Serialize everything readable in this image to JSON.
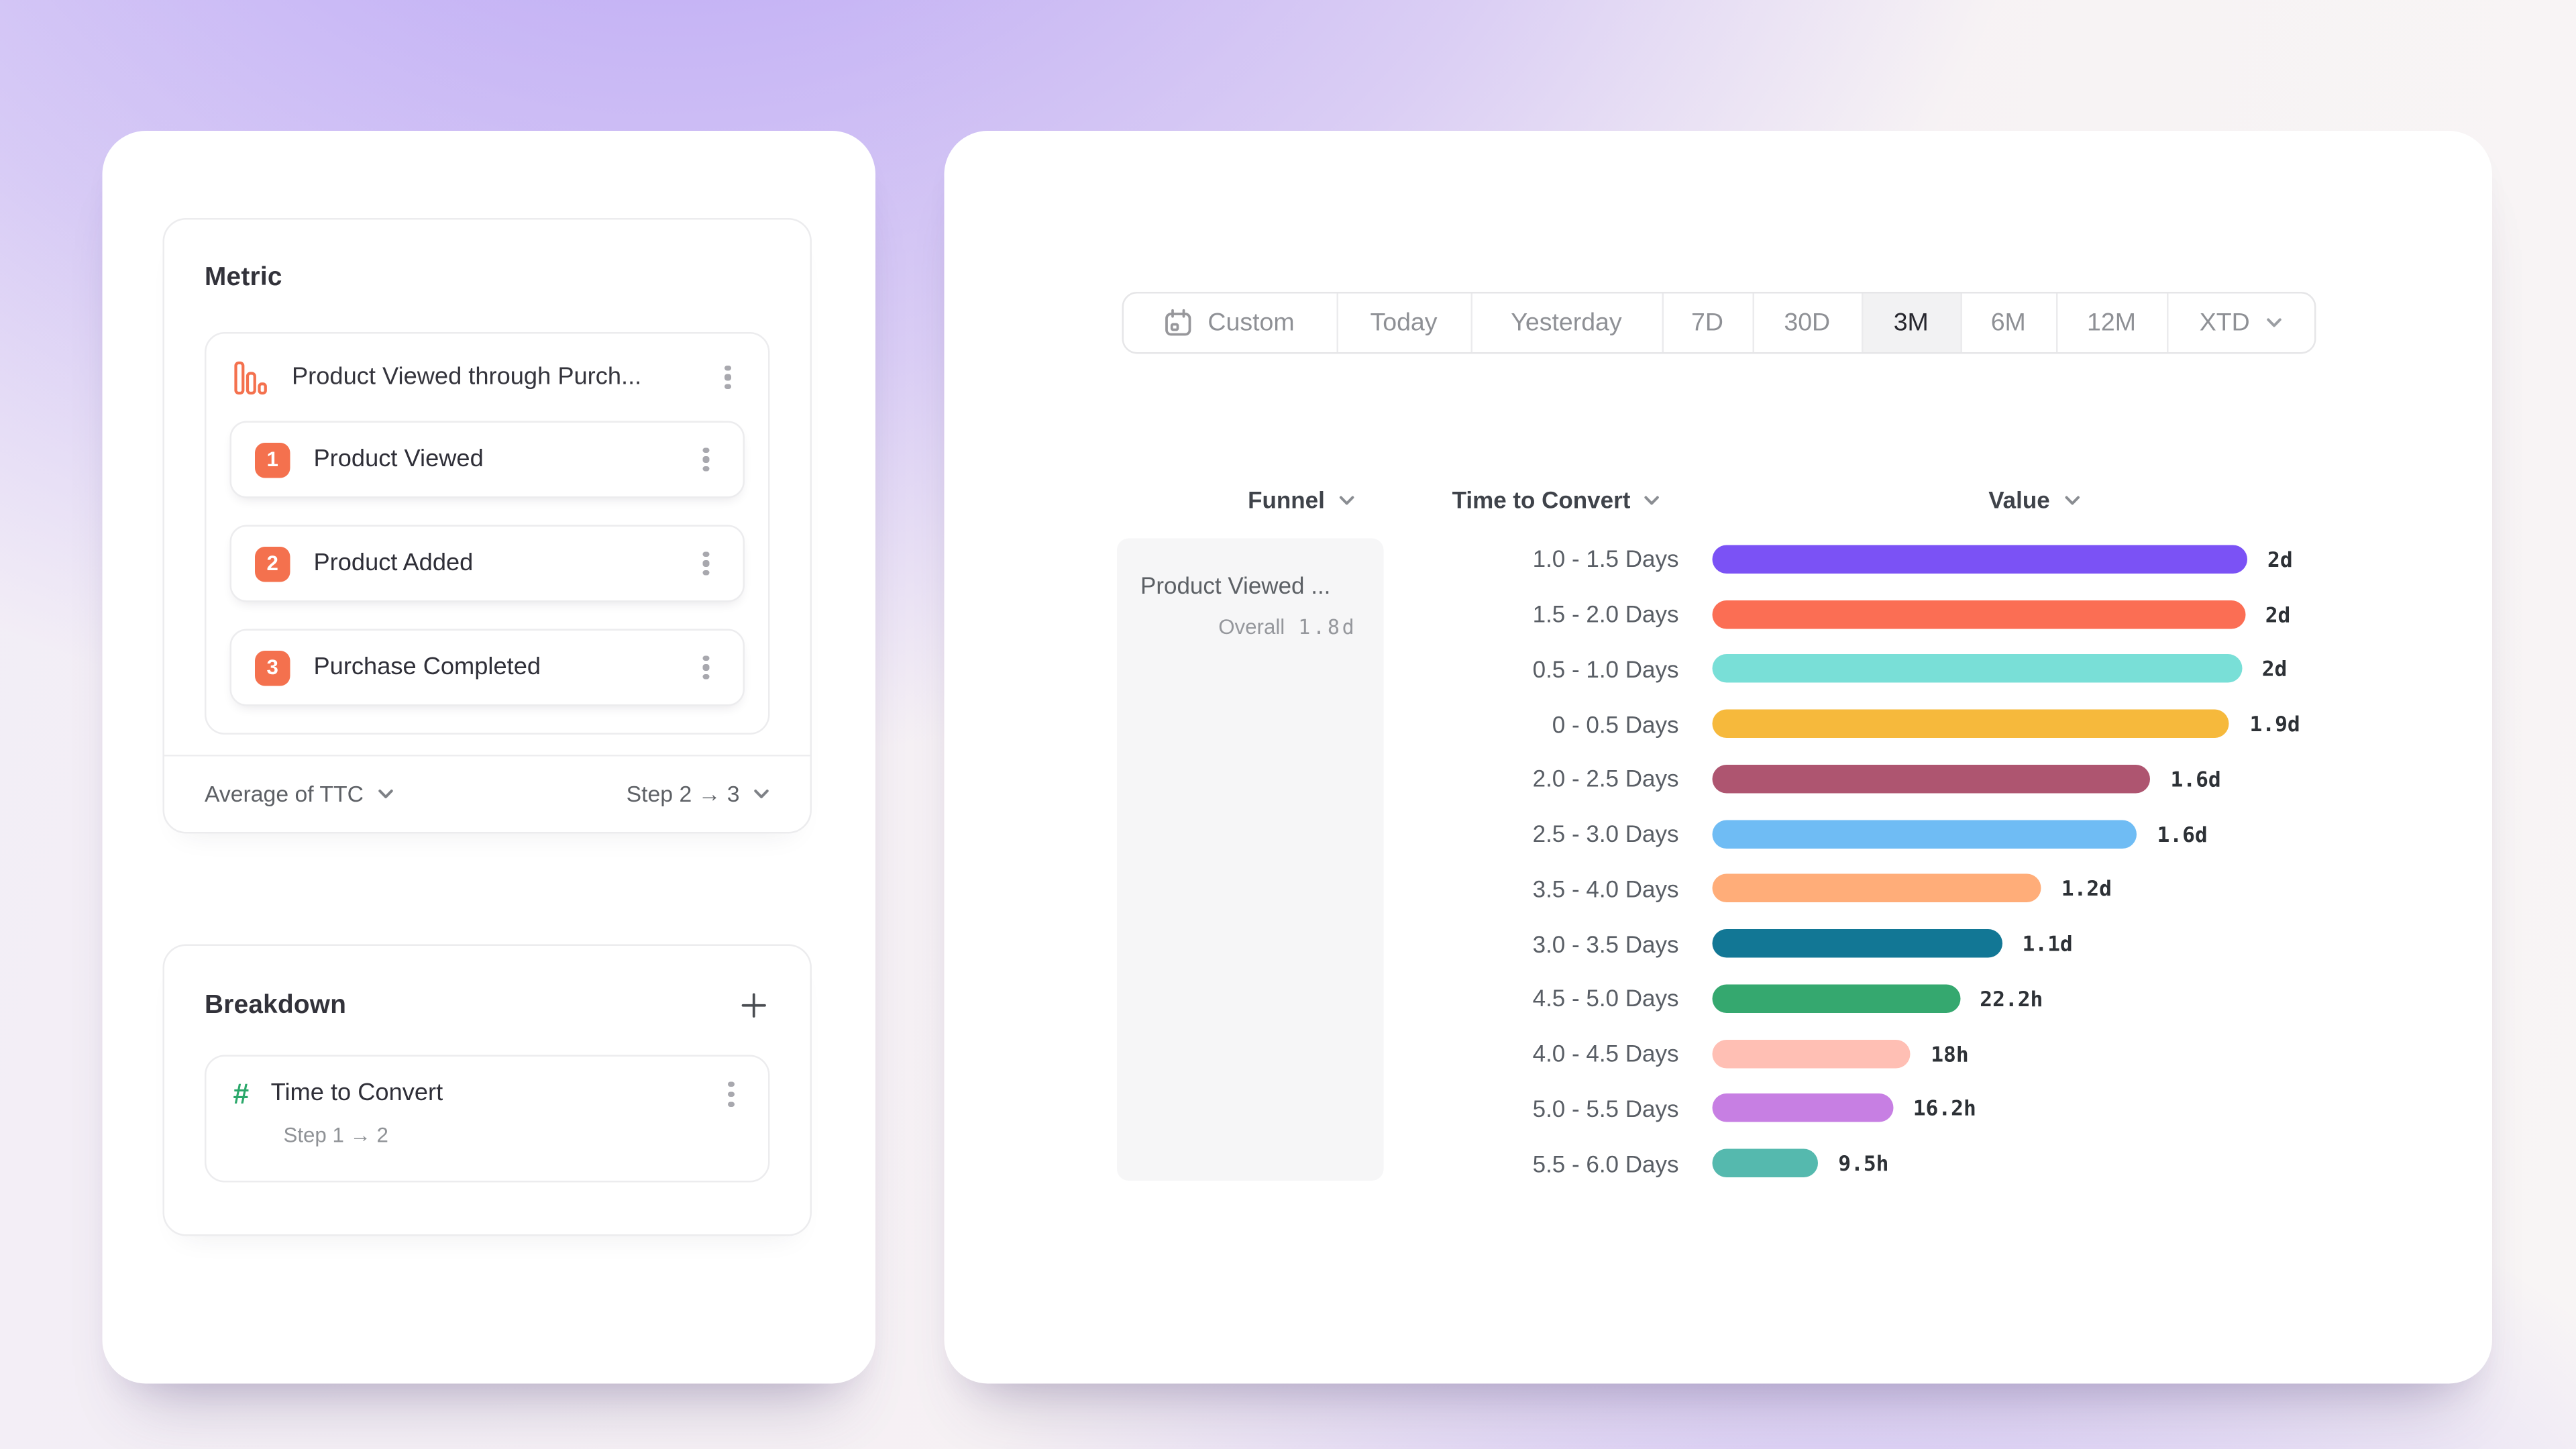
{
  "left_panel": {
    "metric": {
      "title": "Metric",
      "funnel_name": "Product Viewed through Purch...",
      "steps": [
        {
          "num": "1",
          "label": "Product Viewed"
        },
        {
          "num": "2",
          "label": "Product Added"
        },
        {
          "num": "3",
          "label": "Purchase Completed"
        }
      ],
      "aggregation_label": "Average of TTC",
      "step_selector_label": "Step 2 → 3"
    },
    "breakdown": {
      "title": "Breakdown",
      "add_icon": "+",
      "property_icon": "#",
      "property_label": "Time to Convert",
      "step_range_label": "Step 1 → 2"
    }
  },
  "right_panel": {
    "date_picker": {
      "selected": "3M",
      "segments": [
        {
          "label": "Custom",
          "icon": "calendar-icon"
        },
        {
          "label": "Today"
        },
        {
          "label": "Yesterday"
        },
        {
          "label": "7D"
        },
        {
          "label": "30D"
        },
        {
          "label": "3M",
          "selected": true
        },
        {
          "label": "6M"
        },
        {
          "label": "12M"
        },
        {
          "label": "XTD",
          "chevron": true
        }
      ]
    },
    "columns": {
      "funnel": "Funnel",
      "time_to_convert": "Time to Convert",
      "value": "Value"
    },
    "funnel_cell": {
      "name": "Product Viewed ...",
      "overall_label": "Overall",
      "overall_value": "1.8d"
    }
  },
  "chart_data": {
    "type": "bar",
    "orientation": "horizontal",
    "title": "Time to Convert",
    "categories": [
      "1.0 - 1.5 Days",
      "1.5 - 2.0 Days",
      "0.5 - 1.0 Days",
      "0 - 0.5 Days",
      "2.0 - 2.5 Days",
      "2.5 - 3.0 Days",
      "3.5 - 4.0 Days",
      "3.0 - 3.5 Days",
      "4.5 - 5.0 Days",
      "4.0 - 4.5 Days",
      "5.0 - 5.5 Days",
      "5.5 - 6.0 Days"
    ],
    "values_hours": [
      48,
      47.8,
      47.5,
      46.4,
      39.3,
      38.1,
      29.5,
      26.0,
      22.2,
      17.8,
      16.2,
      9.5
    ],
    "value_labels": [
      "2d",
      "2d",
      "2d",
      "1.9d",
      "1.6d",
      "1.6d",
      "1.2d",
      "1.1d",
      "22.2h",
      "18h",
      "16.2h",
      "9.5h"
    ],
    "colors": [
      "#7B52F5",
      "#FB6E54",
      "#79DFD7",
      "#F6B93C",
      "#AE5570",
      "#6FBCF4",
      "#FFAD79",
      "#127795",
      "#35A86F",
      "#FFBFB4",
      "#C77FE3",
      "#55B9AE"
    ],
    "xlim_hours": [
      0,
      48
    ],
    "overall_value": "1.8d",
    "grid": false,
    "legend": false
  },
  "theme": {
    "accent_coral": "#F4714E",
    "hash_green": "#2CA86B",
    "selected_segment_bg": "#F2F2F3",
    "funnel_cell_bg": "#F6F6F7"
  }
}
